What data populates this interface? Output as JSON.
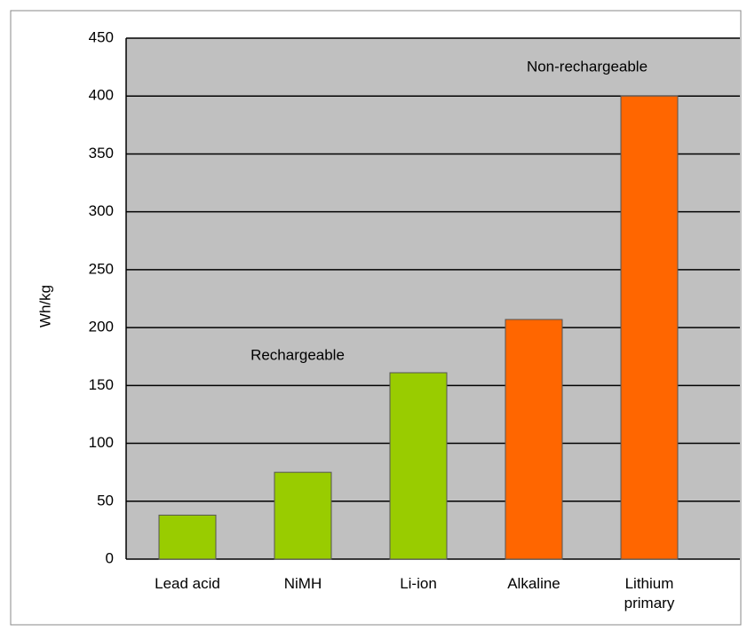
{
  "chart_data": {
    "type": "bar",
    "y_label": "Wh/kg",
    "categories": [
      "Lead acid",
      "NiMH",
      "Li-ion",
      "Alkaline",
      "Lithium primary"
    ],
    "values": [
      38,
      75,
      161,
      207,
      400
    ],
    "colors": [
      "#99cc00",
      "#99cc00",
      "#99cc00",
      "#ff6600",
      "#ff6600"
    ],
    "annotations": [
      "Rechargeable",
      "Non-rechargeable"
    ],
    "ylim": [
      0,
      450
    ],
    "yticks": [
      0,
      50,
      100,
      150,
      200,
      250,
      300,
      350,
      400,
      450
    ],
    "grid": true
  }
}
